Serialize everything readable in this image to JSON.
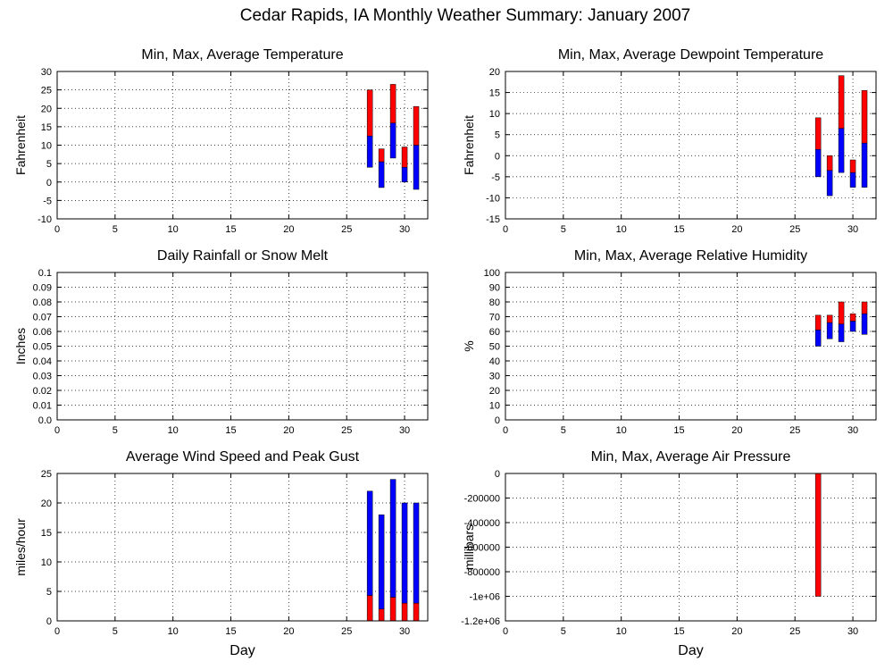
{
  "title": "Cedar Rapids, IA Monthly Weather Summary: January 2007",
  "colors": {
    "lower": "#0000ff",
    "upper": "#ff0000",
    "frame": "#000000"
  },
  "chart_data": [
    {
      "type": "bar",
      "title": "Min, Max, Average Temperature",
      "ylabel": "Fahrenheit",
      "xlabel": "",
      "xlim": [
        0,
        32
      ],
      "ylim": [
        -10,
        30
      ],
      "xticks": [
        "0",
        "5",
        "10",
        "15",
        "20",
        "25",
        "30"
      ],
      "xtick_values": [
        0,
        5,
        10,
        15,
        20,
        25,
        30
      ],
      "yticks": [
        "-10",
        "-5",
        "0",
        "5",
        "10",
        "15",
        "20",
        "25",
        "30"
      ],
      "ytick_values": [
        -10,
        -5,
        0,
        5,
        10,
        15,
        20,
        25,
        30
      ],
      "grid": true,
      "days": [
        27,
        28,
        29,
        30,
        31
      ],
      "min": [
        4,
        -1.5,
        6.5,
        0,
        -2
      ],
      "avg": [
        12.5,
        5.5,
        16,
        4,
        10
      ],
      "max": [
        25,
        9,
        26.5,
        9.5,
        20.5
      ]
    },
    {
      "type": "bar",
      "title": "Min, Max, Average Dewpoint Temperature",
      "ylabel": "Fahrenheit",
      "xlabel": "",
      "xlim": [
        0,
        32
      ],
      "ylim": [
        -15,
        20
      ],
      "xticks": [
        "0",
        "5",
        "10",
        "15",
        "20",
        "25",
        "30"
      ],
      "xtick_values": [
        0,
        5,
        10,
        15,
        20,
        25,
        30
      ],
      "yticks": [
        "-15",
        "-10",
        "-5",
        "0",
        "5",
        "10",
        "15",
        "20"
      ],
      "ytick_values": [
        -15,
        -10,
        -5,
        0,
        5,
        10,
        15,
        20
      ],
      "grid": true,
      "days": [
        27,
        28,
        29,
        30,
        31
      ],
      "min": [
        -5,
        -9.5,
        -4,
        -7.5,
        -7.5
      ],
      "avg": [
        1.5,
        -3.5,
        6.5,
        -4,
        3
      ],
      "max": [
        9,
        0,
        19,
        -1,
        15.5
      ]
    },
    {
      "type": "bar",
      "title": "Daily Rainfall or Snow Melt",
      "ylabel": "Inches",
      "xlabel": "",
      "xlim": [
        0,
        32
      ],
      "ylim": [
        0,
        0.1
      ],
      "xticks": [
        "0",
        "5",
        "10",
        "15",
        "20",
        "25",
        "30"
      ],
      "xtick_values": [
        0,
        5,
        10,
        15,
        20,
        25,
        30
      ],
      "yticks": [
        "0.0",
        "0.01",
        "0.02",
        "0.03",
        "0.04",
        "0.05",
        "0.06",
        "0.07",
        "0.08",
        "0.09",
        "0.1"
      ],
      "ytick_values": [
        0,
        0.01,
        0.02,
        0.03,
        0.04,
        0.05,
        0.06,
        0.07,
        0.08,
        0.09,
        0.1
      ],
      "grid": true,
      "days": [],
      "min": [],
      "avg": [],
      "max": []
    },
    {
      "type": "bar",
      "title": "Min, Max, Average Relative Humidity",
      "ylabel": "%",
      "xlabel": "",
      "xlim": [
        0,
        32
      ],
      "ylim": [
        0,
        100
      ],
      "xticks": [
        "0",
        "5",
        "10",
        "15",
        "20",
        "25",
        "30"
      ],
      "xtick_values": [
        0,
        5,
        10,
        15,
        20,
        25,
        30
      ],
      "yticks": [
        "0",
        "10",
        "20",
        "30",
        "40",
        "50",
        "60",
        "70",
        "80",
        "90",
        "100"
      ],
      "ytick_values": [
        0,
        10,
        20,
        30,
        40,
        50,
        60,
        70,
        80,
        90,
        100
      ],
      "grid": true,
      "days": [
        27,
        28,
        29,
        30,
        31
      ],
      "min": [
        50,
        55,
        53,
        60,
        58
      ],
      "avg": [
        61,
        66,
        65,
        67,
        72
      ],
      "max": [
        71,
        71,
        80,
        72,
        80
      ]
    },
    {
      "type": "bar",
      "title": "Average Wind Speed and Peak Gust",
      "ylabel": "miles/hour",
      "xlabel": "Day",
      "xlim": [
        0,
        32
      ],
      "ylim": [
        0,
        25
      ],
      "xticks": [
        "0",
        "5",
        "10",
        "15",
        "20",
        "25",
        "30"
      ],
      "xtick_values": [
        0,
        5,
        10,
        15,
        20,
        25,
        30
      ],
      "yticks": [
        "0",
        "5",
        "10",
        "15",
        "20",
        "25"
      ],
      "ytick_values": [
        0,
        5,
        10,
        15,
        20,
        25
      ],
      "grid": true,
      "days": [
        27,
        28,
        29,
        30,
        31
      ],
      "avg": [
        4.3,
        2,
        4,
        3,
        3
      ],
      "max": [
        22,
        18,
        24,
        20,
        20
      ]
    },
    {
      "type": "bar",
      "title": "Min, Max, Average Air Pressure",
      "ylabel": "millibars",
      "xlabel": "Day",
      "xlim": [
        0,
        32
      ],
      "ylim": [
        -1200000,
        0
      ],
      "xticks": [
        "0",
        "5",
        "10",
        "15",
        "20",
        "25",
        "30"
      ],
      "xtick_values": [
        0,
        5,
        10,
        15,
        20,
        25,
        30
      ],
      "yticks": [
        "-1.2e+06",
        "-1e+06",
        "-800000",
        "-600000",
        "-400000",
        "-200000",
        "0"
      ],
      "ytick_values": [
        -1200000,
        -1000000,
        -800000,
        -600000,
        -400000,
        -200000,
        0
      ],
      "grid": true,
      "days": [
        27
      ],
      "min": [
        -1000000
      ],
      "max": [
        0
      ]
    }
  ]
}
